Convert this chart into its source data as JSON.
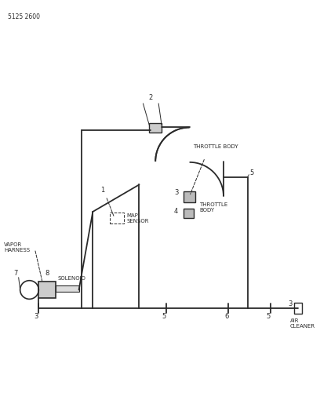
{
  "title_code": "5125 2600",
  "bg_color": "#ffffff",
  "line_color": "#2a2a2a",
  "fig_width": 4.08,
  "fig_height": 5.33,
  "dpi": 100,
  "labels": {
    "map_sensor": "MAP\nSENSOR",
    "vapor_harness": "VAPOR\nHARNESS",
    "solenoid": "SOLENOID",
    "throttle_body_top": "THROTTLE BODY",
    "throttle_body_mid": "THROTTLE\nBODY",
    "air_cleaner": "AIR\nCLEANER"
  },
  "part_numbers": [
    "1",
    "2",
    "3",
    "3",
    "3",
    "4",
    "5",
    "5",
    "5",
    "6",
    "7",
    "8"
  ],
  "hose_lw": 1.3,
  "thin_lw": 0.8,
  "fs_label": 5.0,
  "fs_num": 6.0,
  "fs_code": 5.5
}
